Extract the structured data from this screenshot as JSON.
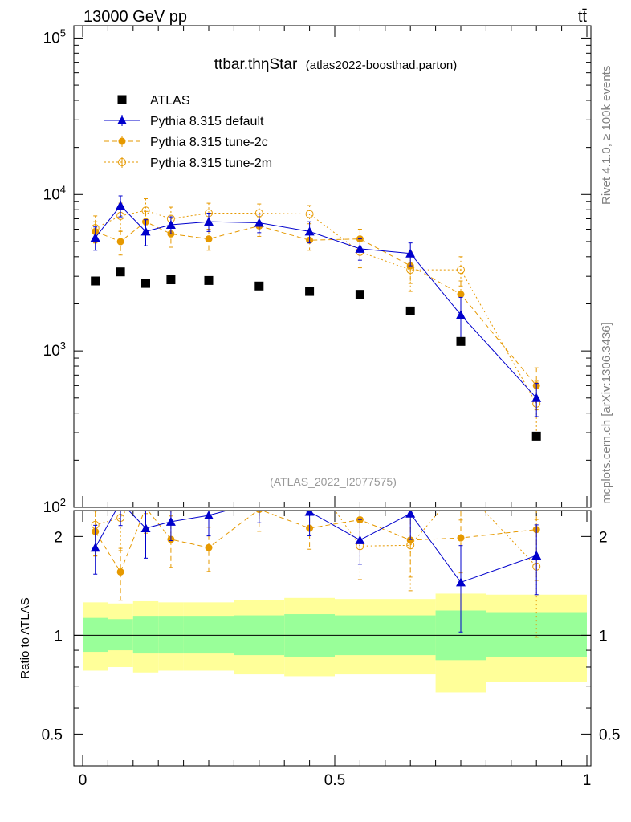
{
  "header": {
    "beam": "13000 GeV pp",
    "process": "tt̄"
  },
  "title": {
    "main": "ttbar.thηStar",
    "sub": "(atlas2022-boosthad.parton)"
  },
  "watermark": "(ATLAS_2022_I2077575)",
  "side_labels": {
    "rivet": "Rivet 4.1.0, ≥ 100k events",
    "mcplots": "mcplots.cern.ch [arXiv:1306.3436]"
  },
  "ratio_ylabel": "Ratio to ATLAS",
  "colors": {
    "data": "#000000",
    "default": "#0000cc",
    "tune2c": "#e69900",
    "tune2m": "#e69900",
    "band_inner": "#99ff99",
    "band_outer": "#ffff99"
  },
  "chart_data": {
    "type": "scatter",
    "xlim": [
      0,
      1
    ],
    "main_ylim": [
      100,
      120000
    ],
    "main_yscale": "log",
    "ratio_ylim": [
      0.4,
      2.4
    ],
    "ratio_yscale": "log",
    "main_yticks": [
      {
        "value": 100,
        "base": "10",
        "exp": "2"
      },
      {
        "value": 1000,
        "base": "10",
        "exp": "3"
      },
      {
        "value": 10000,
        "base": "10",
        "exp": "4"
      },
      {
        "value": 100000,
        "base": "10",
        "exp": "5"
      }
    ],
    "ratio_yticks": [
      {
        "value": 0.5,
        "label": "0.5"
      },
      {
        "value": 1,
        "label": "1"
      },
      {
        "value": 2,
        "label": "2"
      }
    ],
    "xticks": [
      {
        "value": 0,
        "label": "0"
      },
      {
        "value": 0.5,
        "label": "0.5"
      },
      {
        "value": 1,
        "label": "1"
      }
    ],
    "bins": [
      [
        0,
        0.05
      ],
      [
        0.05,
        0.1
      ],
      [
        0.1,
        0.15
      ],
      [
        0.15,
        0.2
      ],
      [
        0.2,
        0.3
      ],
      [
        0.3,
        0.4
      ],
      [
        0.4,
        0.5
      ],
      [
        0.5,
        0.6
      ],
      [
        0.6,
        0.7
      ],
      [
        0.7,
        0.8
      ],
      [
        0.8,
        1.0
      ]
    ],
    "x": [
      0.025,
      0.075,
      0.125,
      0.175,
      0.25,
      0.35,
      0.45,
      0.55,
      0.65,
      0.75,
      0.9
    ],
    "data_values": [
      2800,
      3200,
      2700,
      2850,
      2820,
      2600,
      2400,
      2300,
      1800,
      1150,
      285
    ],
    "uncertainty": {
      "inner": [
        [
          0.89,
          1.13
        ],
        [
          0.9,
          1.12
        ],
        [
          0.88,
          1.14
        ],
        [
          0.88,
          1.14
        ],
        [
          0.88,
          1.14
        ],
        [
          0.87,
          1.15
        ],
        [
          0.86,
          1.16
        ],
        [
          0.87,
          1.15
        ],
        [
          0.87,
          1.15
        ],
        [
          0.84,
          1.19
        ],
        [
          0.86,
          1.17
        ]
      ],
      "outer": [
        [
          0.78,
          1.26
        ],
        [
          0.8,
          1.25
        ],
        [
          0.77,
          1.27
        ],
        [
          0.78,
          1.26
        ],
        [
          0.78,
          1.26
        ],
        [
          0.76,
          1.28
        ],
        [
          0.75,
          1.3
        ],
        [
          0.76,
          1.29
        ],
        [
          0.76,
          1.29
        ],
        [
          0.67,
          1.34
        ],
        [
          0.72,
          1.33
        ]
      ]
    },
    "series": [
      {
        "name": "ATLAS",
        "style": "data",
        "values": [
          2800,
          3200,
          2700,
          2850,
          2820,
          2600,
          2400,
          2300,
          1800,
          1150,
          285
        ]
      },
      {
        "name": "Pythia 8.315 default",
        "style": "default",
        "values": [
          5300,
          8500,
          5800,
          6400,
          6700,
          6600,
          5800,
          4500,
          4200,
          1700,
          500
        ],
        "errors": [
          900,
          1300,
          1100,
          800,
          900,
          900,
          900,
          700,
          700,
          500,
          120
        ],
        "ratio": [
          1.85,
          2.55,
          2.12,
          2.22,
          2.32,
          2.55,
          2.38,
          1.95,
          2.35,
          1.45,
          1.75
        ]
      },
      {
        "name": "Pythia 8.315 tune-2c",
        "style": "tune2c",
        "values": [
          5800,
          5000,
          6700,
          5600,
          5200,
          6300,
          5100,
          5200,
          3500,
          2300,
          600
        ],
        "errors": [
          900,
          900,
          1100,
          1000,
          800,
          900,
          700,
          800,
          800,
          500,
          180
        ],
        "ratio": [
          2.07,
          1.56,
          2.45,
          1.96,
          1.85,
          2.42,
          2.12,
          2.25,
          1.95,
          1.98,
          2.1
        ]
      },
      {
        "name": "Pythia 8.315 tune-2m",
        "style": "tune2m",
        "values": [
          6100,
          7300,
          7900,
          7000,
          7600,
          7600,
          7500,
          4300,
          3300,
          3300,
          460
        ],
        "errors": [
          1200,
          1500,
          1500,
          1300,
          1200,
          1100,
          1000,
          900,
          900,
          700,
          180
        ],
        "ratio": [
          2.17,
          2.28,
          2.9,
          2.45,
          2.7,
          2.9,
          3.1,
          1.87,
          1.88,
          2.85,
          1.62
        ]
      }
    ],
    "legend": [
      {
        "label": "ATLAS",
        "style": "data"
      },
      {
        "label": "Pythia 8.315 default",
        "style": "default"
      },
      {
        "label": "Pythia 8.315 tune-2c",
        "style": "tune2c"
      },
      {
        "label": "Pythia 8.315 tune-2m",
        "style": "tune2m"
      }
    ]
  }
}
